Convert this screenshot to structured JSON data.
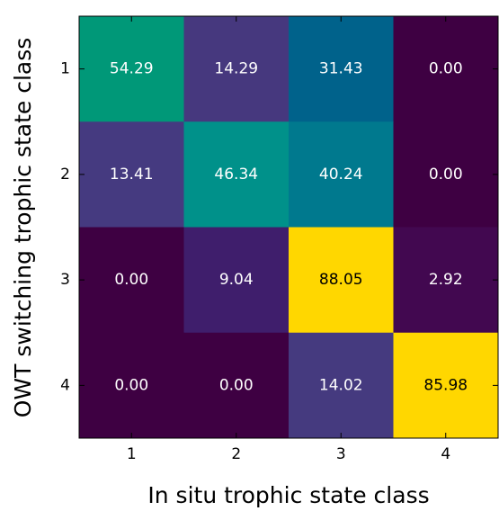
{
  "chart_data": {
    "type": "heatmap",
    "x_label": "In situ trophic state class",
    "y_label": "OWT switching trophic state class",
    "x_categories": [
      "1",
      "2",
      "3",
      "4"
    ],
    "y_categories": [
      "1",
      "2",
      "3",
      "4"
    ],
    "values": [
      [
        54.29,
        14.29,
        31.43,
        0
      ],
      [
        13.41,
        46.34,
        40.24,
        0
      ],
      [
        0,
        9.04,
        88.05,
        2.92
      ],
      [
        0,
        0,
        14.02,
        85.98
      ]
    ],
    "value_labels": [
      [
        "54.29",
        "14.29",
        "31.43",
        "0.00"
      ],
      [
        "13.41",
        "46.34",
        "40.24",
        "0.00"
      ],
      [
        "0.00",
        "9.04",
        "88.05",
        "2.92"
      ],
      [
        "0.00",
        "0.00",
        "14.02",
        "85.98"
      ]
    ],
    "colors": [
      [
        "#009878",
        "#46387e",
        "#00628b",
        "#3e0042"
      ],
      [
        "#453a80",
        "#00918a",
        "#00798e",
        "#3e0042"
      ],
      [
        "#3e0042",
        "#3f1e6c",
        "#ffd700",
        "#420850"
      ],
      [
        "#3e0042",
        "#3e0042",
        "#453a7f",
        "#ffd700"
      ]
    ]
  }
}
